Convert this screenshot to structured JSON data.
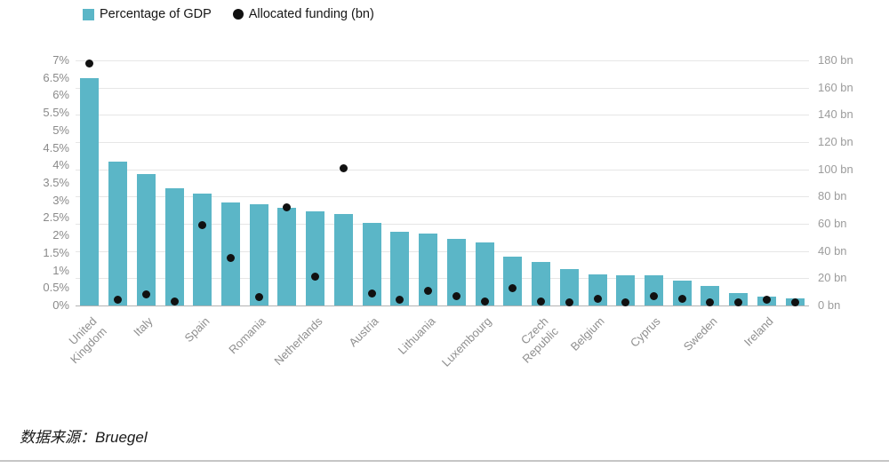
{
  "legend": {
    "items": [
      {
        "label": "Percentage of GDP",
        "color": "#5bb6c7",
        "shape": "square"
      },
      {
        "label": "Allocated funding (bn)",
        "color": "#111111",
        "shape": "circle"
      }
    ]
  },
  "source_note": "数据来源：Bruegel",
  "chart_data": {
    "type": "bar",
    "subtype": "dual-axis-bar-with-dots",
    "title": "",
    "legend_position": "top-left",
    "grid": true,
    "bar_color": "#5bb6c7",
    "dot_color": "#111111",
    "categories": [
      "United Kingdom",
      "",
      "Italy",
      "",
      "Spain",
      "",
      "Romania",
      "",
      "Netherlands",
      "",
      "Austria",
      "",
      "Lithuania",
      "",
      "Luxembourg",
      "",
      "Czech Republic",
      "",
      "Belgium",
      "",
      "Cyprus",
      "",
      "Sweden",
      "",
      "Ireland",
      ""
    ],
    "series": [
      {
        "name": "Percentage of GDP",
        "render": "bar",
        "axis": "left",
        "unit": "%",
        "values": [
          6.5,
          4.1,
          3.75,
          3.35,
          3.2,
          2.95,
          2.9,
          2.8,
          2.7,
          2.6,
          2.35,
          2.1,
          2.05,
          1.9,
          1.8,
          1.4,
          1.25,
          1.05,
          0.9,
          0.85,
          0.85,
          0.7,
          0.55,
          0.35,
          0.25,
          0.2
        ]
      },
      {
        "name": "Allocated funding (bn)",
        "render": "dot",
        "axis": "right",
        "unit": "bn",
        "values": [
          178,
          4,
          8,
          3,
          59,
          35,
          6,
          72,
          21,
          101,
          9,
          4,
          11,
          7,
          3,
          13,
          3,
          2,
          5,
          2,
          7,
          5,
          2,
          2,
          4,
          2
        ]
      }
    ],
    "left_axis": {
      "min": 0,
      "max": 7,
      "ticks": [
        "0%",
        "0.5%",
        "1%",
        "1.5%",
        "2%",
        "2.5%",
        "3%",
        "3.5%",
        "4%",
        "4.5%",
        "5%",
        "5.5%",
        "6%",
        "6.5%",
        "7%"
      ]
    },
    "right_axis": {
      "min": 0,
      "max": 180,
      "ticks": [
        "0 bn",
        "20 bn",
        "40 bn",
        "60 bn",
        "80 bn",
        "100 bn",
        "120 bn",
        "140 bn",
        "160 bn",
        "180 bn"
      ]
    }
  }
}
